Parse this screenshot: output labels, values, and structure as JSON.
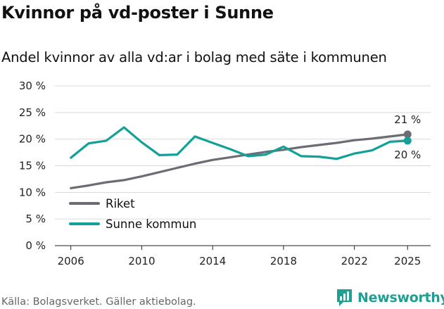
{
  "header": {
    "title": "Kvinnor på vd-poster i Sunne",
    "subtitle": "Andel kvinnor av alla vd:ar i bolag med säte i kommunen"
  },
  "footer": {
    "source": "Källa: Bolagsverket. Gäller aktiebolag.",
    "brand": "Newsworthy"
  },
  "colors": {
    "riket": "#6e6c73",
    "sunne": "#11a198",
    "grid": "#d9d9d9",
    "brand": "#1f9f94"
  },
  "chart_data": {
    "type": "line",
    "title": "Kvinnor på vd-poster i Sunne",
    "subtitle": "Andel kvinnor av alla vd:ar i bolag med säte i kommunen",
    "xlabel": "",
    "ylabel": "",
    "x": [
      2006,
      2007,
      2008,
      2009,
      2010,
      2011,
      2012,
      2013,
      2014,
      2015,
      2016,
      2017,
      2018,
      2019,
      2020,
      2021,
      2022,
      2023,
      2024,
      2025
    ],
    "xlim": [
      2005.1,
      2026.3
    ],
    "ylim": [
      0,
      30
    ],
    "x_ticks": [
      2006,
      2010,
      2014,
      2018,
      2022,
      2025
    ],
    "y_ticks": [
      0,
      5,
      10,
      15,
      20,
      25,
      30
    ],
    "y_tick_labels": [
      "0 %",
      "5 %",
      "10 %",
      "15 %",
      "20 %",
      "25 %",
      "30 %"
    ],
    "grid": true,
    "legend_position": "bottom-left",
    "series": [
      {
        "name": "Riket",
        "key": "riket",
        "values": [
          10.8,
          11.3,
          11.9,
          12.3,
          13.0,
          13.8,
          14.6,
          15.4,
          16.1,
          16.6,
          17.1,
          17.6,
          18.0,
          18.5,
          18.9,
          19.3,
          19.8,
          20.1,
          20.5,
          20.9
        ],
        "end_label": "21 %"
      },
      {
        "name": "Sunne kommun",
        "key": "sunne",
        "values": [
          16.5,
          19.2,
          19.7,
          22.2,
          19.4,
          17.0,
          17.1,
          20.5,
          19.3,
          18.1,
          16.8,
          17.1,
          18.6,
          16.8,
          16.7,
          16.3,
          17.3,
          17.9,
          19.5,
          19.7
        ],
        "end_label": "20 %"
      }
    ]
  }
}
